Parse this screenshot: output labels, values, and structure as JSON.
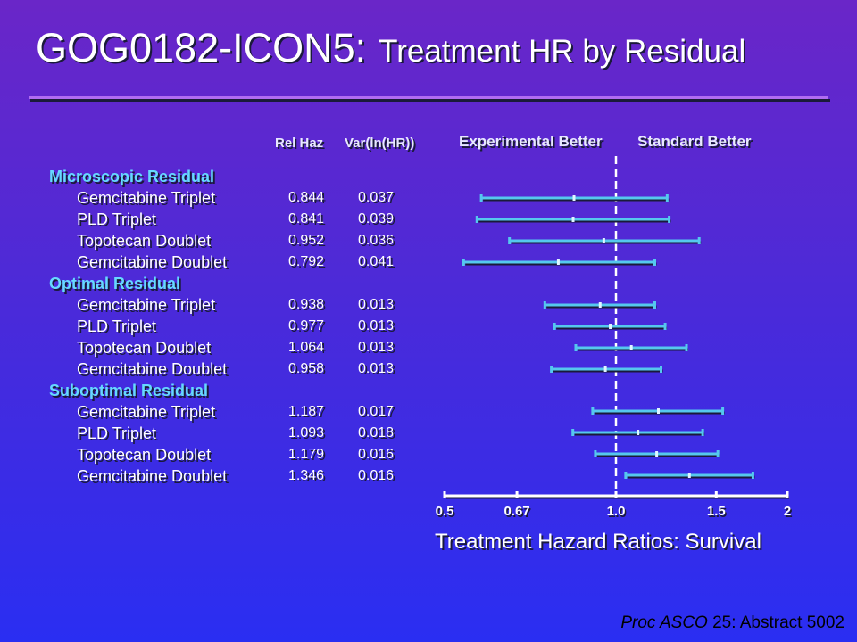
{
  "title": {
    "main": "GOG0182-ICON5:",
    "sub": "Treatment HR by Residual"
  },
  "columns": {
    "rel_haz": "Rel Haz",
    "var": "Var(ln(HR))"
  },
  "side_labels": {
    "left": "Experimental Better",
    "right": "Standard Better"
  },
  "groups": [
    {
      "name": "Microscopic Residual",
      "rows": [
        {
          "label": "Gemcitabine Triplet",
          "rel_haz": "0.844",
          "var": "0.037"
        },
        {
          "label": "PLD Triplet",
          "rel_haz": "0.841",
          "var": "0.039"
        },
        {
          "label": "Topotecan Doublet",
          "rel_haz": "0.952",
          "var": "0.036"
        },
        {
          "label": "Gemcitabine Doublet",
          "rel_haz": "0.792",
          "var": "0.041"
        }
      ]
    },
    {
      "name": "Optimal Residual",
      "rows": [
        {
          "label": "Gemcitabine Triplet",
          "rel_haz": "0.938",
          "var": "0.013"
        },
        {
          "label": "PLD Triplet",
          "rel_haz": "0.977",
          "var": "0.013"
        },
        {
          "label": "Topotecan Doublet",
          "rel_haz": "1.064",
          "var": "0.013"
        },
        {
          "label": "Gemcitabine Doublet",
          "rel_haz": "0.958",
          "var": "0.013"
        }
      ]
    },
    {
      "name": "Suboptimal Residual",
      "rows": [
        {
          "label": "Gemcitabine Triplet",
          "rel_haz": "1.187",
          "var": "0.017"
        },
        {
          "label": "PLD Triplet",
          "rel_haz": "1.093",
          "var": "0.018"
        },
        {
          "label": "Topotecan Doublet",
          "rel_haz": "1.179",
          "var": "0.016"
        },
        {
          "label": "Gemcitabine Doublet",
          "rel_haz": "1.346",
          "var": "0.016"
        }
      ]
    }
  ],
  "chart_data": {
    "type": "forest",
    "x_scale": "log",
    "xlim": [
      0.5,
      2
    ],
    "reference_line": 1.0,
    "x_ticks": [
      0.5,
      0.67,
      1.0,
      1.5,
      2
    ],
    "x_tick_labels": [
      "0.5",
      "0.67",
      "1.0",
      "1.5",
      "2"
    ],
    "xlabel": "Treatment Hazard Ratios: Survival",
    "points": [
      {
        "hr": 0.844,
        "lo": 0.58,
        "hi": 1.23
      },
      {
        "hr": 0.841,
        "lo": 0.57,
        "hi": 1.24
      },
      {
        "hr": 0.952,
        "lo": 0.65,
        "hi": 1.4
      },
      {
        "hr": 0.792,
        "lo": 0.54,
        "hi": 1.17
      },
      {
        "hr": 0.938,
        "lo": 0.75,
        "hi": 1.17
      },
      {
        "hr": 0.977,
        "lo": 0.78,
        "hi": 1.22
      },
      {
        "hr": 1.064,
        "lo": 0.85,
        "hi": 1.33
      },
      {
        "hr": 0.958,
        "lo": 0.77,
        "hi": 1.2
      },
      {
        "hr": 1.187,
        "lo": 0.91,
        "hi": 1.54
      },
      {
        "hr": 1.093,
        "lo": 0.84,
        "hi": 1.42
      },
      {
        "hr": 1.179,
        "lo": 0.92,
        "hi": 1.51
      },
      {
        "hr": 1.346,
        "lo": 1.04,
        "hi": 1.74
      }
    ],
    "colors": {
      "ci_line": "#55c8ee",
      "reference": "#ffffff",
      "axis": "#ffffff"
    }
  },
  "source": {
    "journal": "Proc ASCO",
    "rest": " 25: Abstract 5002"
  }
}
